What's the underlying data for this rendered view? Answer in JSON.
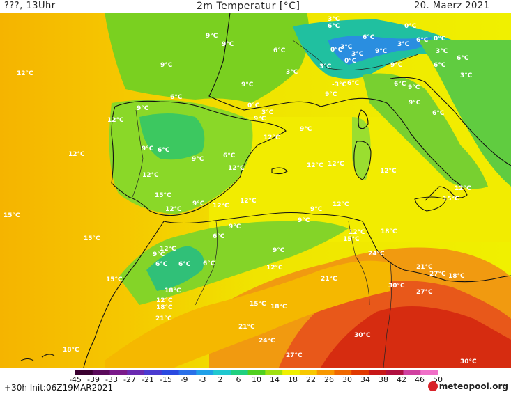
{
  "header": {
    "left": "???, 13Uhr",
    "title": "2m Temperatur [°C]",
    "date": "20. Maerz 2021"
  },
  "footer": {
    "run_info": "+30h  Init:06Z19MAR2021",
    "logo": "meteopool.org"
  },
  "legend": {
    "ticks": [
      "-45",
      "-39",
      "-33",
      "-27",
      "-21",
      "-15",
      "-9",
      "-3",
      "2",
      "6",
      "10",
      "14",
      "18",
      "22",
      "26",
      "30",
      "34",
      "38",
      "42",
      "46",
      "50"
    ],
    "colors": [
      "#3a0030",
      "#5a0a5a",
      "#7a1a8a",
      "#6a2ab0",
      "#4a3ad0",
      "#2a4ae0",
      "#2a70e8",
      "#20a0e8",
      "#20c8d0",
      "#20d080",
      "#50d020",
      "#a0e010",
      "#f0f000",
      "#f8c800",
      "#f89800",
      "#f06800",
      "#e03800",
      "#c81818",
      "#b01040",
      "#d040a0",
      "#f070c8"
    ]
  },
  "temp_labels": [
    {
      "t": "3°C"
    },
    {
      "t": "6°C"
    },
    {
      "t": "0°C"
    },
    {
      "t": "6°C"
    },
    {
      "t": "0°C"
    },
    {
      "t": "3°C"
    },
    {
      "t": "6°C"
    },
    {
      "t": "9°C"
    },
    {
      "t": "9°C"
    },
    {
      "t": "6°C"
    },
    {
      "t": "3°C"
    },
    {
      "t": "3°C"
    },
    {
      "t": "0°C"
    },
    {
      "t": "3°C"
    },
    {
      "t": "9°C"
    },
    {
      "t": "12°C"
    },
    {
      "t": "9°C"
    },
    {
      "t": "3°C"
    },
    {
      "t": "0°C"
    },
    {
      "t": "9°C"
    },
    {
      "t": "-3°C"
    },
    {
      "t": "6°C"
    },
    {
      "t": "3°C"
    },
    {
      "t": "6°C"
    },
    {
      "t": "9°C"
    },
    {
      "t": "9°C"
    },
    {
      "t": "3°C"
    },
    {
      "t": "6°C"
    },
    {
      "t": "0°C"
    },
    {
      "t": "3°C"
    },
    {
      "t": "9°C"
    },
    {
      "t": "6°C"
    },
    {
      "t": "9°C"
    },
    {
      "t": "6°C"
    },
    {
      "t": "9°C"
    },
    {
      "t": "12°C"
    },
    {
      "t": "9°C"
    },
    {
      "t": "12°C"
    },
    {
      "t": "9°C"
    },
    {
      "t": "6°C"
    },
    {
      "t": "12°C"
    },
    {
      "t": "9°C"
    },
    {
      "t": "6°C"
    },
    {
      "t": "9°C"
    },
    {
      "t": "6°C"
    },
    {
      "t": "12°C"
    },
    {
      "t": "12°C"
    },
    {
      "t": "12°C"
    },
    {
      "t": "12°C"
    },
    {
      "t": "12°C"
    },
    {
      "t": "15°C"
    },
    {
      "t": "15°C"
    },
    {
      "t": "12°C"
    },
    {
      "t": "9°C"
    },
    {
      "t": "12°C"
    },
    {
      "t": "12°C"
    },
    {
      "t": "9°C"
    },
    {
      "t": "12°C"
    },
    {
      "t": "15°C"
    },
    {
      "t": "9°C"
    },
    {
      "t": "12°C"
    },
    {
      "t": "6°C"
    },
    {
      "t": "9°C"
    },
    {
      "t": "12°C"
    },
    {
      "t": "15°C"
    },
    {
      "t": "18°C"
    },
    {
      "t": "12°C"
    },
    {
      "t": "9°C"
    },
    {
      "t": "6°C"
    },
    {
      "t": "6°C"
    },
    {
      "t": "6°C"
    },
    {
      "t": "9°C"
    },
    {
      "t": "12°C"
    },
    {
      "t": "24°C"
    },
    {
      "t": "15°C"
    },
    {
      "t": "21°C"
    },
    {
      "t": "15°C"
    },
    {
      "t": "18°C"
    },
    {
      "t": "21°C"
    },
    {
      "t": "30°C"
    },
    {
      "t": "27°C"
    },
    {
      "t": "18°C"
    },
    {
      "t": "27°C"
    },
    {
      "t": "12°C"
    },
    {
      "t": "18°C"
    },
    {
      "t": "15°C"
    },
    {
      "t": "18°C"
    },
    {
      "t": "21°C"
    },
    {
      "t": "21°C"
    },
    {
      "t": "24°C"
    },
    {
      "t": "30°C"
    },
    {
      "t": "27°C"
    },
    {
      "t": "18°C"
    },
    {
      "t": "30°C"
    }
  ]
}
